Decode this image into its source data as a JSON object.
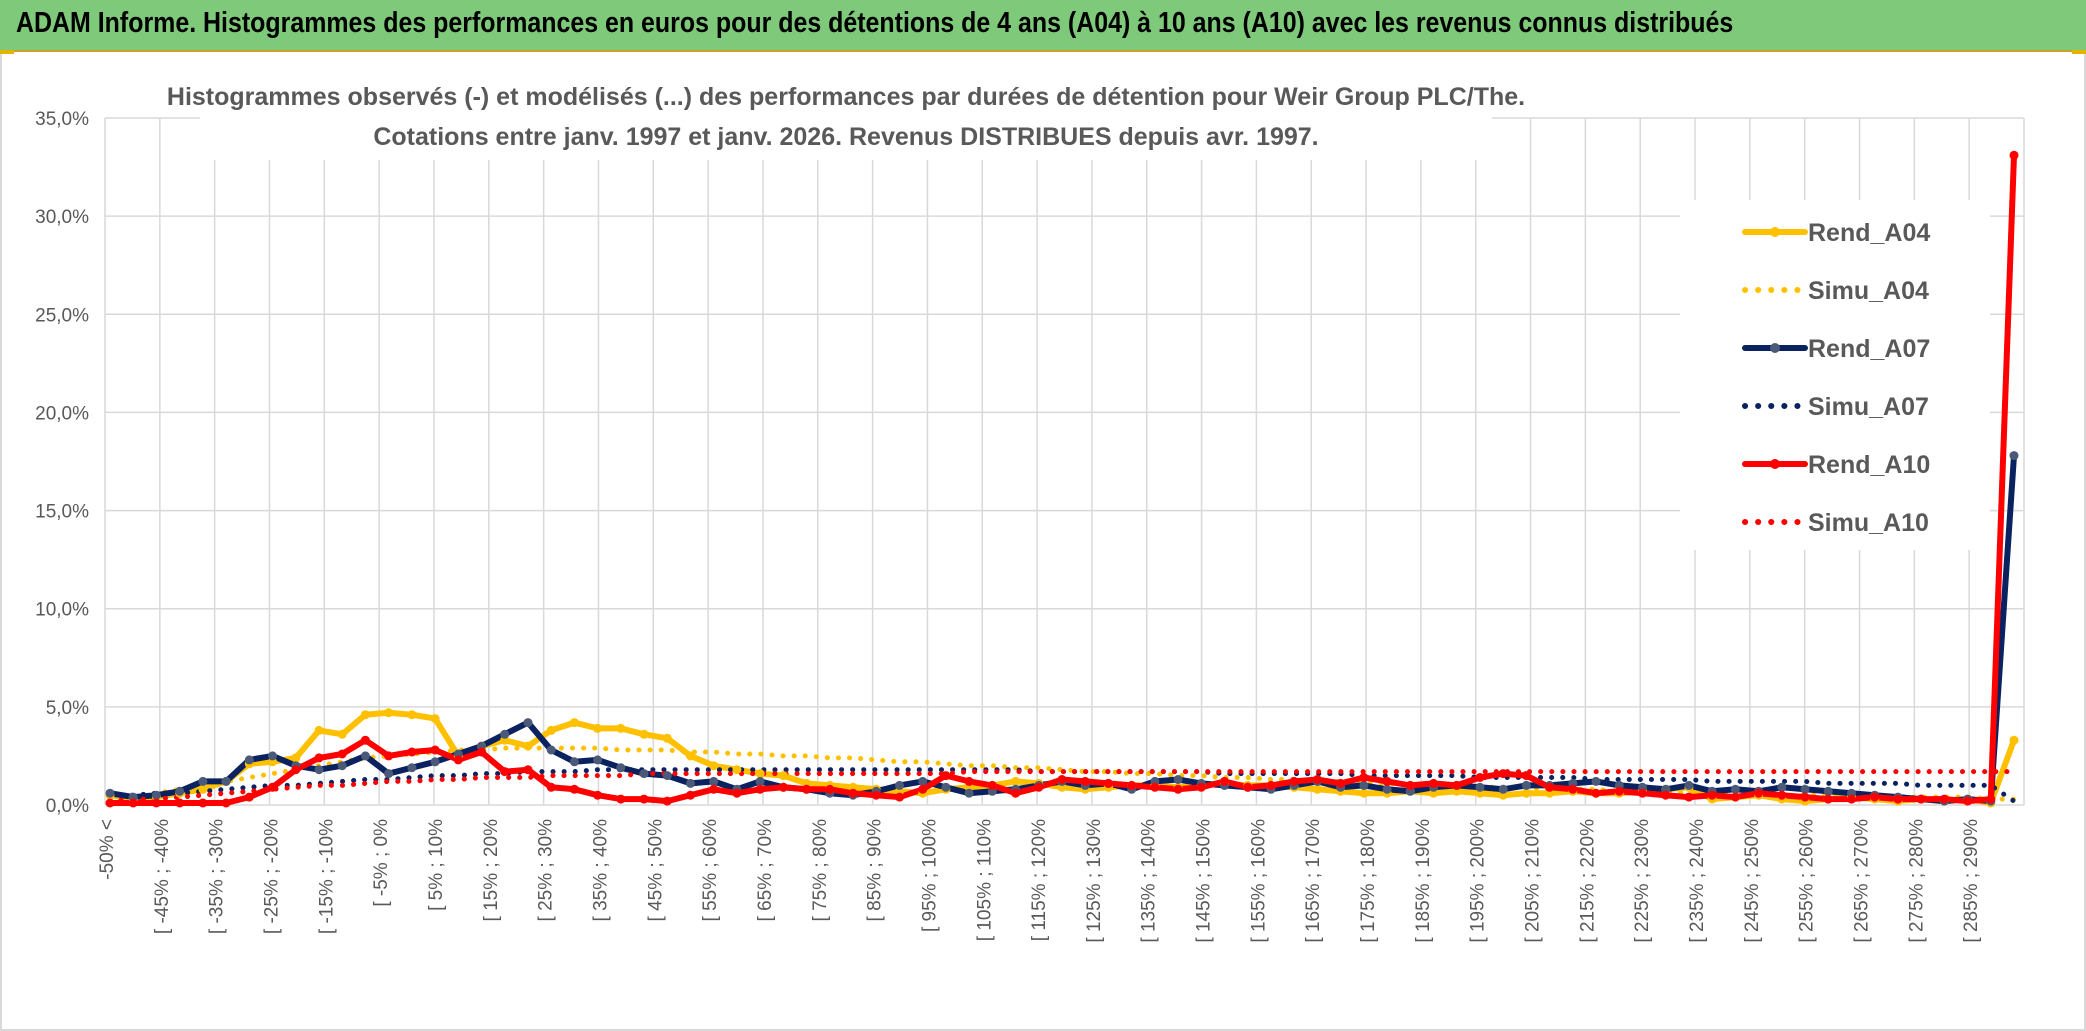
{
  "header": {
    "title": "ADAM Informe. Histogrammes des performances en euros pour des détentions de 4 ans (A04) à 10 ans (A10) avec les revenus connus distribués"
  },
  "colors": {
    "banner": "#7ec97a",
    "a04": "#ffc000",
    "a07": "#0b2260",
    "a10": "#ff0000",
    "marker_a07": "#4a5a78"
  },
  "chart_data": {
    "type": "line",
    "title_line1": "Histogrammes observés (-) et modélisés (...) des performances par durées de détention pour Weir Group PLC/The.",
    "title_line2": "Cotations entre janv. 1997 et janv. 2026. Revenus DISTRIBUES depuis avr. 1997.",
    "ylim": [
      0,
      35
    ],
    "y_ticks": [
      "0,0%",
      "5,0%",
      "10,0%",
      "15,0%",
      "20,0%",
      "25,0%",
      "30,0%",
      "35,0%"
    ],
    "y_tick_values": [
      0,
      5,
      10,
      15,
      20,
      25,
      30,
      35
    ],
    "grid": true,
    "legend_position": "right",
    "x_labels": [
      "-50% <",
      "[ -45% ; -40%",
      "[ -35% ; -30%",
      "[ -25% ; -20%",
      "[ -15% ; -10%",
      "[ -5% ; 0%",
      "[ 5% ; 10%",
      "[ 15% ; 20%",
      "[ 25% ; 30%",
      "[ 35% ; 40%",
      "[ 45% ; 50%",
      "[ 55% ; 60%",
      "[ 65% ; 70%",
      "[ 75% ; 80%",
      "[ 85% ; 90%",
      "[ 95% ; 100%",
      "[ 105% ; 110%",
      "[ 115% ; 120%",
      "[ 125% ; 130%",
      "[ 135% ; 140%",
      "[ 145% ; 150%",
      "[ 155% ; 160%",
      "[ 165% ; 170%",
      "[ 175% ; 180%",
      "[ 185% ; 190%",
      "[ 195% ; 200%",
      "[ 205% ; 210%",
      "[ 215% ; 220%",
      "[ 225% ; 230%",
      "[ 235% ; 240%",
      "[ 245% ; 250%",
      "[ 255% ; 260%",
      "[ 265% ; 270%",
      "[ 275% ; 280%",
      "[ 285% ; 290%"
    ],
    "series": [
      {
        "name": "Rend_A04",
        "style": "solid",
        "color": "#ffc000",
        "values": [
          0.5,
          0.3,
          0.4,
          0.6,
          0.8,
          1.2,
          2.1,
          2.2,
          2.4,
          3.8,
          3.6,
          4.6,
          4.7,
          4.6,
          4.4,
          2.5,
          3.0,
          3.3,
          3.0,
          3.8,
          4.2,
          3.9,
          3.9,
          3.6,
          3.4,
          2.5,
          2.0,
          1.8,
          1.6,
          1.5,
          1.1,
          1.0,
          0.9,
          0.8,
          0.7,
          0.6,
          0.8,
          0.9,
          1.0,
          1.2,
          1.1,
          0.9,
          0.8,
          0.9,
          1.0,
          1.0,
          0.9,
          1.0,
          1.1,
          1.0,
          1.0,
          0.9,
          0.8,
          0.7,
          0.6,
          0.6,
          0.7,
          0.6,
          0.7,
          0.6,
          0.5,
          0.6,
          0.6,
          0.7,
          0.6,
          0.6,
          0.7,
          0.8,
          0.9,
          0.3,
          0.4,
          0.5,
          0.3,
          0.2,
          0.3,
          0.4,
          0.3,
          0.2,
          0.3,
          0.2,
          0.3,
          0.1,
          3.3
        ]
      },
      {
        "name": "Simu_A04",
        "style": "dotted",
        "color": "#ffc000",
        "values": [
          0.3,
          0.4,
          0.6,
          0.8,
          1.0,
          1.2,
          1.4,
          1.6,
          1.8,
          2.0,
          2.2,
          2.4,
          2.5,
          2.6,
          2.7,
          2.8,
          2.8,
          2.9,
          2.9,
          2.9,
          2.9,
          2.9,
          2.8,
          2.8,
          2.8,
          2.7,
          2.7,
          2.6,
          2.6,
          2.5,
          2.5,
          2.4,
          2.4,
          2.3,
          2.2,
          2.2,
          2.1,
          2.0,
          2.0,
          1.9,
          1.9,
          1.8,
          1.7,
          1.7,
          1.6,
          1.6,
          1.5,
          1.5,
          1.4,
          1.4,
          1.3,
          1.3,
          1.2,
          1.2,
          1.1,
          1.1,
          1.0,
          1.0,
          1.0,
          0.9,
          0.9,
          0.9,
          0.8,
          0.8,
          0.8,
          0.7,
          0.7,
          0.7,
          0.6,
          0.6,
          0.6,
          0.6,
          0.5,
          0.5,
          0.5,
          0.5,
          0.4,
          0.4,
          0.4,
          0.4,
          0.4,
          0.3,
          0.3
        ]
      },
      {
        "name": "Rend_A07",
        "style": "solid",
        "color": "#0b2260",
        "values": [
          0.6,
          0.4,
          0.5,
          0.7,
          1.2,
          1.2,
          2.3,
          2.5,
          2.0,
          1.8,
          2.0,
          2.5,
          1.6,
          1.9,
          2.2,
          2.6,
          3.0,
          3.6,
          4.2,
          2.8,
          2.2,
          2.3,
          1.9,
          1.6,
          1.5,
          1.1,
          1.2,
          0.8,
          1.2,
          0.9,
          0.8,
          0.6,
          0.5,
          0.7,
          1.0,
          1.2,
          0.9,
          0.6,
          0.7,
          0.8,
          1.0,
          1.2,
          1.0,
          1.1,
          0.8,
          1.2,
          1.3,
          1.1,
          1.0,
          0.9,
          0.8,
          1.0,
          1.2,
          0.9,
          1.0,
          0.8,
          0.7,
          0.9,
          1.0,
          0.9,
          0.8,
          1.0,
          1.0,
          1.1,
          1.2,
          1.0,
          0.9,
          0.8,
          1.0,
          0.7,
          0.8,
          0.7,
          0.9,
          0.8,
          0.7,
          0.6,
          0.5,
          0.4,
          0.3,
          0.2,
          0.3,
          0.2,
          17.8
        ]
      },
      {
        "name": "Simu_A07",
        "style": "dotted",
        "color": "#0b2260",
        "values": [
          0.5,
          0.5,
          0.6,
          0.6,
          0.7,
          0.8,
          0.9,
          1.0,
          1.0,
          1.1,
          1.2,
          1.3,
          1.3,
          1.4,
          1.5,
          1.5,
          1.6,
          1.6,
          1.7,
          1.7,
          1.7,
          1.8,
          1.8,
          1.8,
          1.8,
          1.8,
          1.8,
          1.8,
          1.8,
          1.8,
          1.8,
          1.8,
          1.8,
          1.8,
          1.8,
          1.8,
          1.8,
          1.8,
          1.8,
          1.8,
          1.7,
          1.7,
          1.7,
          1.7,
          1.7,
          1.7,
          1.7,
          1.7,
          1.6,
          1.6,
          1.6,
          1.6,
          1.6,
          1.6,
          1.5,
          1.5,
          1.5,
          1.5,
          1.5,
          1.4,
          1.4,
          1.4,
          1.4,
          1.4,
          1.3,
          1.3,
          1.3,
          1.3,
          1.3,
          1.2,
          1.2,
          1.2,
          1.2,
          1.2,
          1.1,
          1.1,
          1.1,
          1.1,
          1.0,
          1.0,
          1.0,
          1.0,
          0.2
        ]
      },
      {
        "name": "Rend_A10",
        "style": "solid",
        "color": "#ff0000",
        "values": [
          0.1,
          0.1,
          0.1,
          0.1,
          0.1,
          0.1,
          0.4,
          0.9,
          1.8,
          2.4,
          2.6,
          3.3,
          2.5,
          2.7,
          2.8,
          2.3,
          2.7,
          1.7,
          1.8,
          0.9,
          0.8,
          0.5,
          0.3,
          0.3,
          0.2,
          0.5,
          0.8,
          0.6,
          0.8,
          0.9,
          0.8,
          0.8,
          0.6,
          0.5,
          0.4,
          0.8,
          1.5,
          1.2,
          1.0,
          0.6,
          0.9,
          1.3,
          1.2,
          1.1,
          1.0,
          0.9,
          0.8,
          0.9,
          1.2,
          0.9,
          1.0,
          1.2,
          1.3,
          1.1,
          1.4,
          1.2,
          1.0,
          1.1,
          1.0,
          1.4,
          1.6,
          1.5,
          0.9,
          0.8,
          0.6,
          0.7,
          0.6,
          0.5,
          0.4,
          0.5,
          0.4,
          0.6,
          0.5,
          0.4,
          0.3,
          0.3,
          0.4,
          0.3,
          0.3,
          0.3,
          0.2,
          0.3,
          33.1
        ]
      },
      {
        "name": "Simu_A10",
        "style": "dotted",
        "color": "#ff0000",
        "values": [
          0.2,
          0.3,
          0.3,
          0.4,
          0.5,
          0.6,
          0.7,
          0.8,
          0.9,
          1.0,
          1.0,
          1.1,
          1.2,
          1.2,
          1.3,
          1.3,
          1.4,
          1.4,
          1.4,
          1.5,
          1.5,
          1.5,
          1.5,
          1.6,
          1.6,
          1.6,
          1.6,
          1.6,
          1.6,
          1.6,
          1.6,
          1.6,
          1.6,
          1.6,
          1.6,
          1.6,
          1.6,
          1.7,
          1.7,
          1.7,
          1.7,
          1.7,
          1.7,
          1.7,
          1.7,
          1.7,
          1.7,
          1.7,
          1.7,
          1.7,
          1.7,
          1.7,
          1.7,
          1.7,
          1.7,
          1.7,
          1.7,
          1.7,
          1.7,
          1.7,
          1.7,
          1.7,
          1.7,
          1.7,
          1.7,
          1.7,
          1.7,
          1.7,
          1.7,
          1.7,
          1.7,
          1.7,
          1.7,
          1.7,
          1.7,
          1.7,
          1.7,
          1.7,
          1.7,
          1.7,
          1.7,
          1.7,
          1.7
        ]
      }
    ]
  }
}
